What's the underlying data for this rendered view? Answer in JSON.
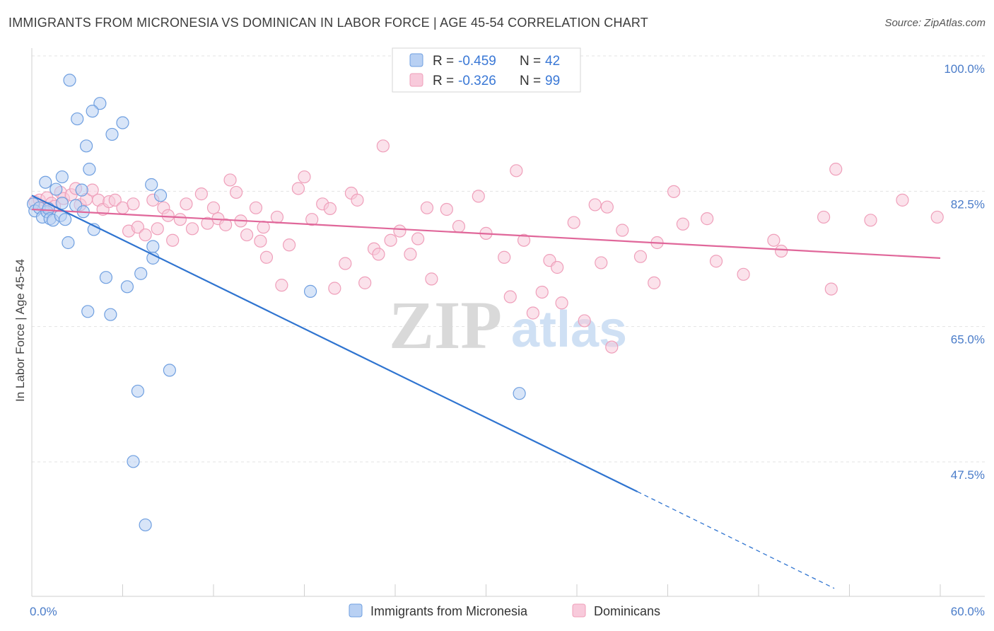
{
  "header": {
    "title": "IMMIGRANTS FROM MICRONESIA VS DOMINICAN IN LABOR FORCE | AGE 45-54 CORRELATION CHART",
    "source": "Source: ZipAtlas.com"
  },
  "watermark": {
    "zip": "ZIP",
    "atlas": "atlas"
  },
  "chart_data": {
    "type": "scatter",
    "title": "IMMIGRANTS FROM MICRONESIA VS DOMINICAN IN LABOR FORCE | AGE 45-54 CORRELATION CHART",
    "xlabel": "",
    "ylabel": "In Labor Force | Age 45-54",
    "xlim": [
      0,
      60
    ],
    "ylim": [
      32,
      102
    ],
    "x_tick_labels": [
      "0.0%",
      "60.0%"
    ],
    "y_ticks": [
      47.5,
      65.0,
      82.5,
      100.0
    ],
    "y_tick_labels": [
      "47.5%",
      "65.0%",
      "82.5%",
      "100.0%"
    ],
    "grid": "horizontal dashed",
    "legend_placement": "top-center",
    "series": [
      {
        "name": "Immigrants from Micronesia",
        "color": "#6f9fe0",
        "fill": "#b8d0f3",
        "line_color": "#2f74d0",
        "R": "-0.459",
        "N": "42",
        "trend": {
          "x0": 0,
          "y0": 83.6,
          "x1": 40,
          "y1": 45.3,
          "dashed_to_x": 53,
          "dashed_to_y": 32.8
        },
        "points": [
          [
            2.5,
            98.5
          ],
          [
            4.5,
            95.5
          ],
          [
            3.0,
            93.5
          ],
          [
            4.0,
            94.5
          ],
          [
            6.0,
            93.0
          ],
          [
            5.3,
            91.5
          ],
          [
            3.6,
            90.0
          ],
          [
            0.9,
            85.3
          ],
          [
            2.0,
            86.0
          ],
          [
            3.8,
            87.0
          ],
          [
            7.9,
            85.0
          ],
          [
            8.5,
            83.6
          ],
          [
            0.1,
            82.5
          ],
          [
            0.2,
            81.6
          ],
          [
            0.5,
            82.0
          ],
          [
            0.7,
            80.8
          ],
          [
            1.0,
            81.5
          ],
          [
            1.1,
            81.9
          ],
          [
            1.2,
            80.6
          ],
          [
            1.4,
            80.4
          ],
          [
            1.6,
            84.4
          ],
          [
            1.9,
            81.0
          ],
          [
            2.2,
            80.5
          ],
          [
            2.0,
            82.6
          ],
          [
            2.9,
            82.3
          ],
          [
            3.3,
            84.3
          ],
          [
            3.4,
            81.5
          ],
          [
            4.1,
            79.2
          ],
          [
            2.4,
            77.5
          ],
          [
            8.0,
            77.0
          ],
          [
            8.0,
            75.5
          ],
          [
            7.2,
            73.5
          ],
          [
            4.9,
            73.0
          ],
          [
            6.3,
            71.8
          ],
          [
            18.4,
            71.2
          ],
          [
            3.7,
            68.6
          ],
          [
            5.2,
            68.2
          ],
          [
            9.1,
            61.0
          ],
          [
            7.0,
            58.3
          ],
          [
            32.2,
            58.0
          ],
          [
            6.7,
            49.2
          ],
          [
            7.5,
            41.0
          ]
        ]
      },
      {
        "name": "Dominicans",
        "color": "#ef9fba",
        "fill": "#f8cadb",
        "line_color": "#e0679a",
        "R": "-0.326",
        "N": "99",
        "trend": {
          "x0": 0,
          "y0": 81.8,
          "x1": 60,
          "y1": 75.5
        },
        "points": [
          [
            0.2,
            82.8
          ],
          [
            0.5,
            83.0
          ],
          [
            0.8,
            82.0
          ],
          [
            1.0,
            83.3
          ],
          [
            1.3,
            82.6
          ],
          [
            1.5,
            82.2
          ],
          [
            1.9,
            84.0
          ],
          [
            2.1,
            83.2
          ],
          [
            2.6,
            83.7
          ],
          [
            2.9,
            84.5
          ],
          [
            3.2,
            82.4
          ],
          [
            3.6,
            83.1
          ],
          [
            4.0,
            84.3
          ],
          [
            4.4,
            83.0
          ],
          [
            4.7,
            81.8
          ],
          [
            5.1,
            82.8
          ],
          [
            5.5,
            83.0
          ],
          [
            6.0,
            82.0
          ],
          [
            6.4,
            79.0
          ],
          [
            6.7,
            82.5
          ],
          [
            7.0,
            79.5
          ],
          [
            7.5,
            78.5
          ],
          [
            8.0,
            83.0
          ],
          [
            8.3,
            79.3
          ],
          [
            8.7,
            82.0
          ],
          [
            9.0,
            81.0
          ],
          [
            9.3,
            77.8
          ],
          [
            9.8,
            80.5
          ],
          [
            10.2,
            82.5
          ],
          [
            10.6,
            79.3
          ],
          [
            11.2,
            83.8
          ],
          [
            11.6,
            80.0
          ],
          [
            12.0,
            82.0
          ],
          [
            12.3,
            80.6
          ],
          [
            12.8,
            79.8
          ],
          [
            13.1,
            85.6
          ],
          [
            13.5,
            84.0
          ],
          [
            13.8,
            80.3
          ],
          [
            14.2,
            78.5
          ],
          [
            14.8,
            82.0
          ],
          [
            15.1,
            77.7
          ],
          [
            15.3,
            79.5
          ],
          [
            15.5,
            75.6
          ],
          [
            16.2,
            80.8
          ],
          [
            16.5,
            72.0
          ],
          [
            17.0,
            77.2
          ],
          [
            17.6,
            84.5
          ],
          [
            18.0,
            86.0
          ],
          [
            18.5,
            80.5
          ],
          [
            19.2,
            82.5
          ],
          [
            19.7,
            81.9
          ],
          [
            20.0,
            71.6
          ],
          [
            20.7,
            74.8
          ],
          [
            21.1,
            83.9
          ],
          [
            21.5,
            83.0
          ],
          [
            22.0,
            72.3
          ],
          [
            22.6,
            76.7
          ],
          [
            22.9,
            76.0
          ],
          [
            23.2,
            90.0
          ],
          [
            23.7,
            77.8
          ],
          [
            24.3,
            79.0
          ],
          [
            25.0,
            76.0
          ],
          [
            25.5,
            78.0
          ],
          [
            26.1,
            82.0
          ],
          [
            26.4,
            72.8
          ],
          [
            27.4,
            81.8
          ],
          [
            28.2,
            79.6
          ],
          [
            29.5,
            83.5
          ],
          [
            30.0,
            78.7
          ],
          [
            31.2,
            75.6
          ],
          [
            31.6,
            70.5
          ],
          [
            32.0,
            86.8
          ],
          [
            32.5,
            77.8
          ],
          [
            33.1,
            68.4
          ],
          [
            33.7,
            71.1
          ],
          [
            34.2,
            75.2
          ],
          [
            34.7,
            74.3
          ],
          [
            35.0,
            69.7
          ],
          [
            35.8,
            80.1
          ],
          [
            36.5,
            67.4
          ],
          [
            37.2,
            82.4
          ],
          [
            37.6,
            74.9
          ],
          [
            38.0,
            82.1
          ],
          [
            38.3,
            64.0
          ],
          [
            39.0,
            79.1
          ],
          [
            40.2,
            75.7
          ],
          [
            41.1,
            72.3
          ],
          [
            41.3,
            77.5
          ],
          [
            42.4,
            84.1
          ],
          [
            43.0,
            79.9
          ],
          [
            44.6,
            80.6
          ],
          [
            45.2,
            75.1
          ],
          [
            47.0,
            73.4
          ],
          [
            49.0,
            77.8
          ],
          [
            49.5,
            76.4
          ],
          [
            52.3,
            80.8
          ],
          [
            52.8,
            71.5
          ],
          [
            53.1,
            87.0
          ],
          [
            55.4,
            80.4
          ],
          [
            57.5,
            83.0
          ],
          [
            59.8,
            80.8
          ]
        ]
      }
    ]
  }
}
